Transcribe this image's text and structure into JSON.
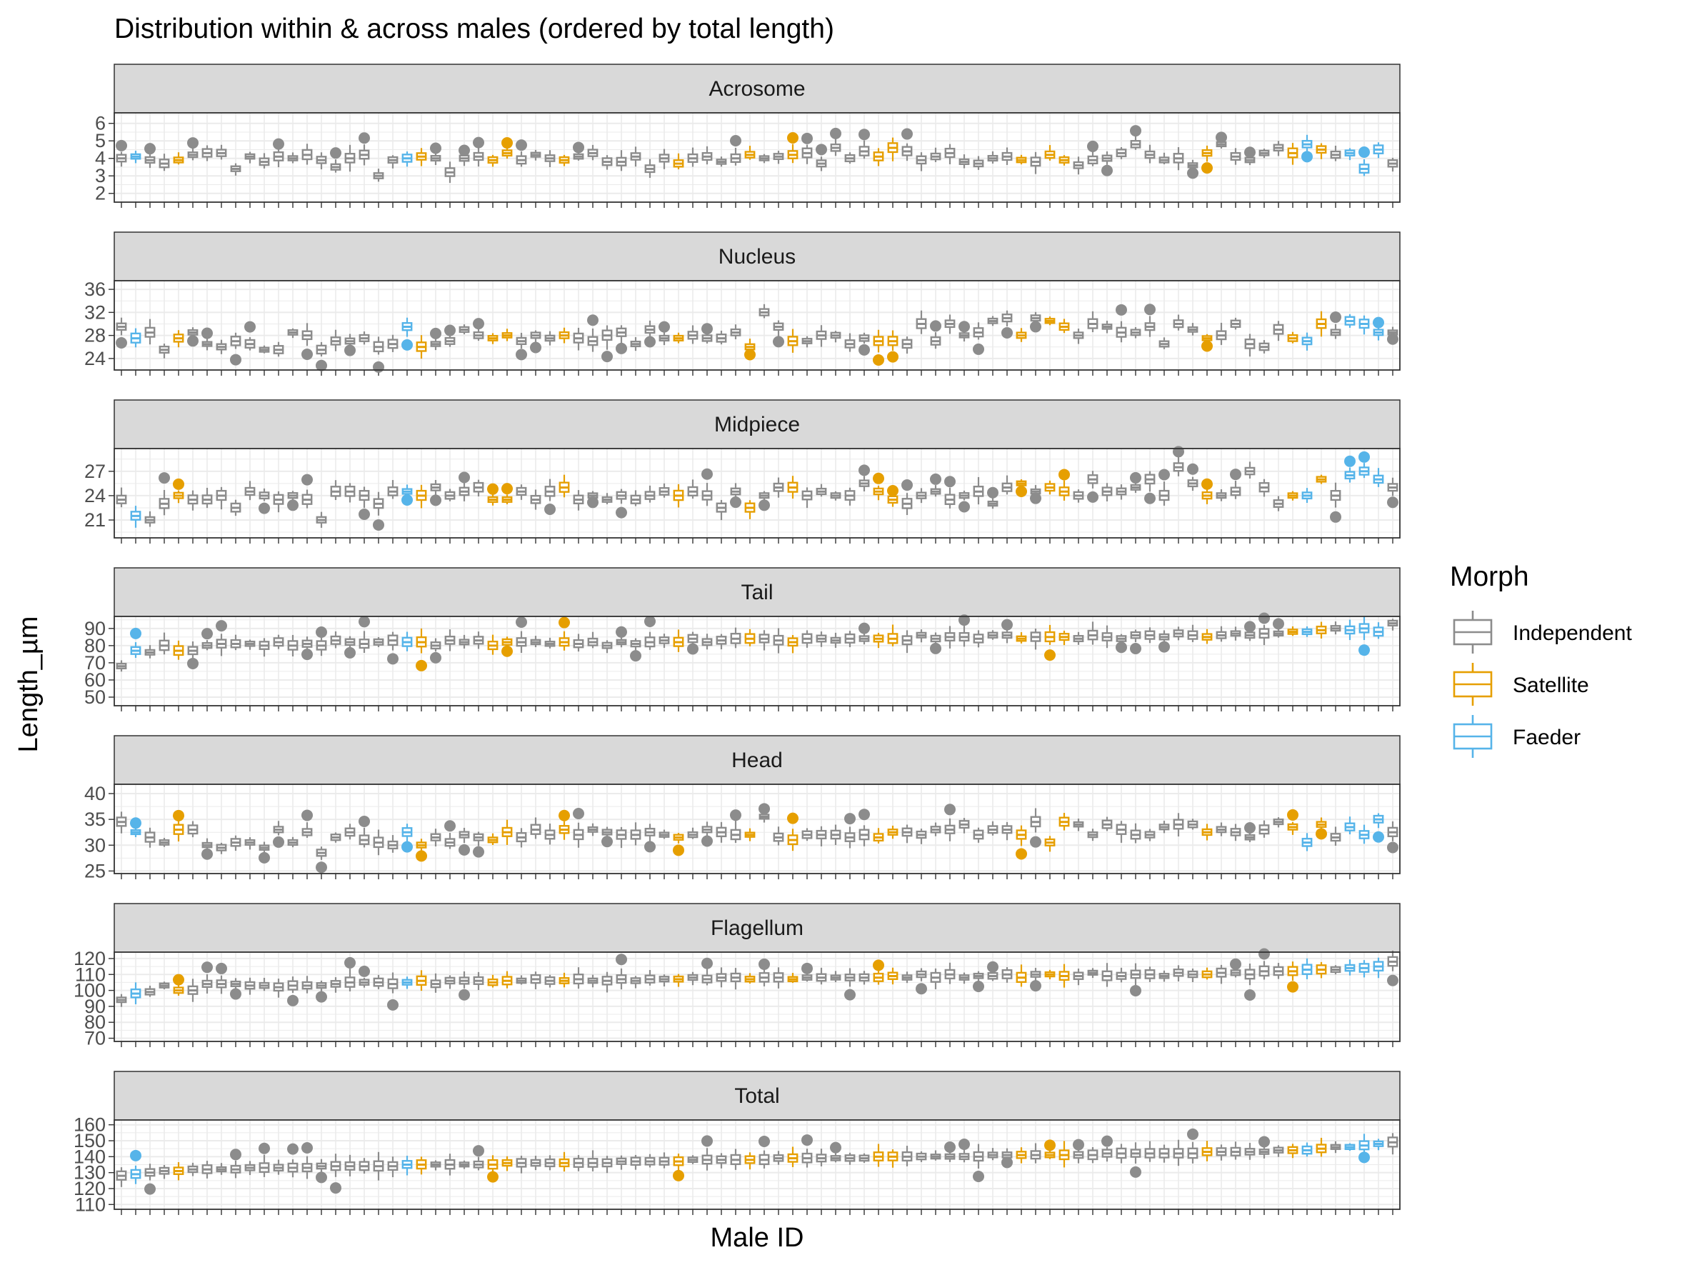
{
  "chart_data": {
    "type": "boxplot",
    "title": "Distribution within & across males (ordered by total length)",
    "xlabel": "Male ID",
    "ylabel": "Length_µm",
    "legend": {
      "title": "Morph",
      "position": "right",
      "entries": [
        {
          "name": "Independent",
          "color": "#8c8c8c"
        },
        {
          "name": "Satellite",
          "color": "#e69f00"
        },
        {
          "name": "Faeder",
          "color": "#56b4e9"
        }
      ]
    },
    "grid": true,
    "n_males": 90,
    "morphs": [
      0,
      2,
      0,
      0,
      1,
      0,
      0,
      0,
      0,
      0,
      0,
      0,
      0,
      0,
      0,
      0,
      0,
      0,
      0,
      0,
      2,
      1,
      0,
      0,
      0,
      0,
      1,
      1,
      0,
      0,
      0,
      1,
      0,
      0,
      0,
      0,
      0,
      0,
      0,
      1,
      0,
      0,
      0,
      0,
      1,
      0,
      0,
      1,
      0,
      0,
      0,
      0,
      0,
      1,
      1,
      0,
      0,
      0,
      0,
      0,
      0,
      0,
      0,
      1,
      0,
      1,
      1,
      0,
      0,
      0,
      0,
      0,
      0,
      0,
      0,
      0,
      1,
      0,
      0,
      0,
      0,
      0,
      1,
      2,
      1,
      0,
      2,
      2,
      2,
      0
    ],
    "panels": [
      {
        "name": "Acrosome",
        "ylim": [
          1.5,
          6.6
        ],
        "yticks": [
          2,
          3,
          4,
          5,
          6
        ],
        "base": [
          4.0,
          4.1,
          3.9,
          3.7,
          3.9,
          4.2,
          4.3,
          4.3,
          3.4,
          4.1,
          3.8,
          4.1,
          4.0,
          4.2,
          3.9,
          3.5,
          4.0,
          4.2,
          3.0,
          3.9,
          4.0,
          4.1,
          4.0,
          3.2,
          4.0,
          4.1,
          3.9,
          4.3,
          3.9,
          4.2,
          4.0,
          3.9,
          4.1,
          4.3,
          3.8,
          3.8,
          4.1,
          3.4,
          4.0,
          3.7,
          4.0,
          4.1,
          3.8,
          4.0,
          4.2,
          4.0,
          4.1,
          4.2,
          4.3,
          3.7,
          4.6,
          4.0,
          4.4,
          4.1,
          4.6,
          4.4,
          3.9,
          4.1,
          4.3,
          3.8,
          3.7,
          4.0,
          4.1,
          3.9,
          3.8,
          4.2,
          3.9,
          3.6,
          3.9,
          4.0,
          4.3,
          4.8,
          4.2,
          3.9,
          4.0,
          3.6,
          4.3,
          4.8,
          4.1,
          3.9,
          4.3,
          4.6,
          4.3,
          4.8,
          4.5,
          4.2,
          4.3,
          3.4,
          4.5,
          3.7
        ]
      },
      {
        "name": "Nucleus",
        "ylim": [
          22,
          37.5
        ],
        "yticks": [
          24,
          28,
          32,
          36
        ],
        "base": [
          29.5,
          27.5,
          28.5,
          25.5,
          27.5,
          28.5,
          26.5,
          26.0,
          27.0,
          26.5,
          25.5,
          25.5,
          28.5,
          28.0,
          25.5,
          27.0,
          27.0,
          27.5,
          26.0,
          26.5,
          29.5,
          26.0,
          26.5,
          27.0,
          29.0,
          28.0,
          27.5,
          28.0,
          27.0,
          28.0,
          27.5,
          28.0,
          27.5,
          27.0,
          28.0,
          28.5,
          26.5,
          29.0,
          27.5,
          27.5,
          28.0,
          27.5,
          27.5,
          28.5,
          26.0,
          32.0,
          29.5,
          27.0,
          27.0,
          28.0,
          28.0,
          26.5,
          27.5,
          27.0,
          27.0,
          26.5,
          30.0,
          27.0,
          30.0,
          28.0,
          28.5,
          30.5,
          31.0,
          28.0,
          31.0,
          30.5,
          29.5,
          28.0,
          30.0,
          29.5,
          28.5,
          28.5,
          29.5,
          26.5,
          30.0,
          29.0,
          27.5,
          28.0,
          30.0,
          26.5,
          26.0,
          29.0,
          27.5,
          27.0,
          30.0,
          28.5,
          30.5,
          30.0,
          28.5,
          28.5
        ]
      },
      {
        "name": "Midpiece",
        "ylim": [
          18.8,
          29.8
        ],
        "yticks": [
          21,
          24,
          27
        ],
        "base": [
          23.5,
          21.5,
          21.0,
          23.0,
          24.0,
          23.5,
          23.5,
          24.0,
          22.5,
          24.5,
          24.0,
          23.5,
          24.0,
          23.5,
          21.0,
          24.5,
          24.5,
          24.0,
          23.0,
          24.5,
          24.5,
          24.0,
          25.0,
          24.0,
          24.5,
          25.0,
          23.5,
          23.5,
          24.5,
          23.5,
          24.5,
          25.0,
          23.5,
          24.0,
          23.5,
          24.0,
          23.5,
          24.0,
          24.5,
          24.0,
          24.5,
          24.0,
          22.5,
          24.5,
          22.5,
          24.0,
          25.0,
          25.0,
          24.0,
          24.5,
          24.0,
          24.0,
          25.5,
          24.5,
          23.5,
          23.0,
          24.0,
          24.5,
          23.5,
          24.0,
          24.5,
          23.0,
          25.0,
          25.5,
          24.5,
          25.0,
          24.5,
          24.0,
          26.0,
          24.5,
          24.5,
          25.0,
          26.0,
          24.0,
          27.5,
          25.5,
          24.0,
          24.0,
          24.5,
          27.0,
          25.0,
          23.0,
          24.0,
          24.0,
          26.0,
          24.0,
          26.5,
          27.0,
          26.0,
          25.0
        ]
      },
      {
        "name": "Tail",
        "ylim": [
          45,
          97
        ],
        "yticks": [
          50,
          60,
          70,
          80,
          90
        ],
        "base": [
          68,
          77,
          76,
          80,
          77,
          77,
          80,
          81,
          81,
          81,
          80,
          82,
          80,
          81,
          80,
          83,
          82,
          81,
          82,
          83,
          82,
          82,
          80,
          83,
          82,
          83,
          80,
          82,
          82,
          82,
          81,
          82,
          81,
          82,
          80,
          82,
          81,
          82,
          83,
          82,
          84,
          82,
          83,
          84,
          84,
          84,
          83,
          82,
          84,
          84,
          83,
          84,
          84,
          84,
          84,
          83,
          86,
          84,
          85,
          85,
          84,
          86,
          86,
          84,
          85,
          85,
          85,
          84,
          86,
          85,
          84,
          86,
          86,
          85,
          87,
          86,
          85,
          86,
          87,
          86,
          87,
          87,
          88,
          88,
          89,
          90,
          89,
          90,
          88,
          93
        ]
      },
      {
        "name": "Head",
        "ylim": [
          24.5,
          41.8
        ],
        "yticks": [
          25,
          30,
          35,
          40
        ],
        "base": [
          34.5,
          32.5,
          31.5,
          30.5,
          33.0,
          33.0,
          30.0,
          29.5,
          30.5,
          30.5,
          29.5,
          33.0,
          30.5,
          32.5,
          28.5,
          31.5,
          32.5,
          31.0,
          30.5,
          30.0,
          32.5,
          30.0,
          31.5,
          30.5,
          32.0,
          31.5,
          31.0,
          32.5,
          31.5,
          33.0,
          32.0,
          33.0,
          32.0,
          33.0,
          32.5,
          32.0,
          32.0,
          32.5,
          32.0,
          31.5,
          32.0,
          33.0,
          32.5,
          32.0,
          32.0,
          35.5,
          31.5,
          31.0,
          32.0,
          32.0,
          32.0,
          31.5,
          32.0,
          31.5,
          32.5,
          32.5,
          32.0,
          33.0,
          33.0,
          34.0,
          32.0,
          33.0,
          33.0,
          32.0,
          34.5,
          30.5,
          34.5,
          34.0,
          32.0,
          34.0,
          33.0,
          32.0,
          32.0,
          33.5,
          34.0,
          34.0,
          32.5,
          33.0,
          32.5,
          31.5,
          33.0,
          34.5,
          33.5,
          30.5,
          34.0,
          31.5,
          33.5,
          32.0,
          35.0,
          32.5
        ]
      },
      {
        "name": "Flagellum",
        "ylim": [
          68,
          124
        ],
        "yticks": [
          70,
          80,
          90,
          100,
          110,
          120
        ],
        "base": [
          94,
          98,
          99,
          103,
          100,
          100,
          104,
          104,
          104,
          103,
          103,
          102,
          103,
          103,
          103,
          104,
          105,
          105,
          105,
          104,
          105,
          106,
          104,
          106,
          106,
          106,
          105,
          106,
          106,
          107,
          106,
          106,
          107,
          106,
          106,
          107,
          106,
          107,
          107,
          107,
          108,
          107,
          108,
          108,
          107,
          108,
          108,
          107,
          108,
          108,
          108,
          108,
          108,
          108,
          109,
          108,
          110,
          108,
          110,
          108,
          109,
          109,
          110,
          108,
          110,
          110,
          109,
          109,
          111,
          109,
          109,
          110,
          110,
          109,
          111,
          110,
          110,
          111,
          111,
          110,
          112,
          112,
          112,
          113,
          113,
          113,
          114,
          114,
          115,
          118
        ]
      },
      {
        "name": "Total",
        "ylim": [
          107,
          163
        ],
        "yticks": [
          110,
          120,
          130,
          140,
          150,
          160
        ],
        "base": [
          128,
          129,
          130,
          131,
          131,
          132,
          132,
          132,
          132,
          133,
          133,
          133,
          133,
          133,
          134,
          134,
          134,
          134,
          134,
          134,
          135,
          135,
          135,
          135,
          135,
          135,
          135,
          136,
          136,
          136,
          136,
          136,
          136,
          136,
          136,
          137,
          137,
          137,
          137,
          137,
          138,
          138,
          138,
          138,
          138,
          138,
          139,
          139,
          139,
          139,
          139,
          139,
          139,
          140,
          140,
          140,
          140,
          140,
          140,
          140,
          140,
          141,
          141,
          141,
          141,
          141,
          141,
          141,
          141,
          142,
          142,
          142,
          142,
          142,
          142,
          142,
          143,
          143,
          143,
          143,
          143,
          144,
          144,
          144,
          145,
          146,
          146,
          147,
          148,
          149
        ]
      }
    ]
  }
}
